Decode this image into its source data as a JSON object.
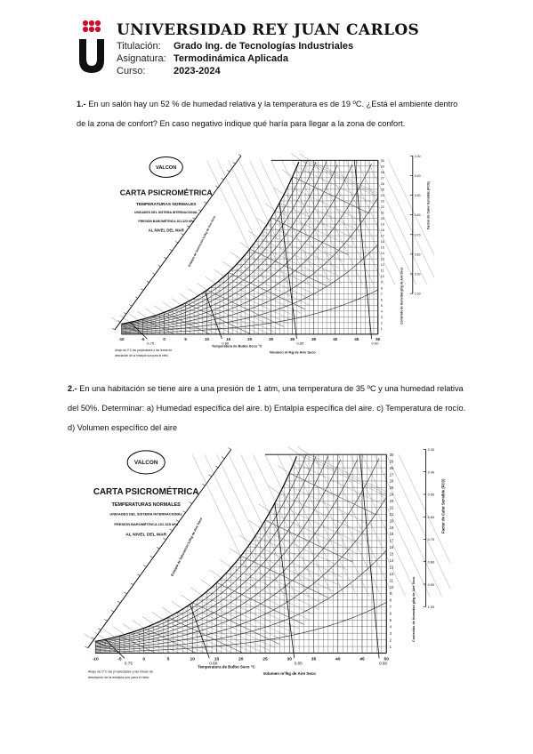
{
  "header": {
    "university": "UNIVERSIDAD REY JUAN CARLOS",
    "rows": [
      {
        "label": "Titulación:",
        "value": "Grado Ing. de Tecnologías Industriales"
      },
      {
        "label": "Asignatura:",
        "value": "Termodinámica Aplicada"
      },
      {
        "label": "Curso:",
        "value": "2023-2024"
      }
    ],
    "logo_color": "#c8102e"
  },
  "questions": [
    {
      "number": "1.-",
      "text": " En un salón hay un 52 % de humedad relativa y la temperatura es de 19 ºC. ¿Está el ambiente dentro de la zona de confort? En caso negativo indique qué haría para llegar a la zona de confort."
    },
    {
      "number": "2.-",
      "text": " En una habitación se tiene aire a una presión de 1 atm, una temperatura de 35 ºC y una humedad relativa del 50%. Determinar: a) Humedad específica del aire. b) Entalpía específica del aire. c) Temperatura de rocío. d) Volumen específico del aire"
    }
  ],
  "psychrometric_chart": {
    "brand": "VALCON",
    "title": "CARTA PSICROMÉTRICA",
    "subtitle": "TEMPERATURAS NORMALES",
    "line2": "UNIDADES DEL SISTEMA INTERNACIONAL",
    "pressure": "PRESIÓN BAROMÉTRICA   101.325 kPa",
    "sea_level": "AL NIVEL DEL MAR",
    "x_axis": "Temperatura de Bulbo Seco   °C",
    "volume_axis": "Volumen     m³/kg de Aire Seco",
    "enthalpy_axis": "Entalpía de Saturación   kJ/kg de Aire Seco",
    "humidity_axis": "Contenido de Humedad  g/kg de Aire Seco",
    "shf_axis": "Factor de Calor Sensible  (FCS)",
    "footnote_1": "Abajo de 0°C las propiedades y las líneas de",
    "footnote_2": "desviación de la entalpía son para el hielo",
    "x_ticks": [
      "-10",
      "-5",
      "0",
      "5",
      "10",
      "15",
      "20",
      "25",
      "30",
      "35",
      "40",
      "45",
      "50"
    ],
    "vol_ticks": [
      "0.75",
      "0.80",
      "0.85",
      "0.90"
    ],
    "right_ticks": [
      "30",
      "29",
      "28",
      "27",
      "26",
      "25",
      "24",
      "23",
      "22",
      "21",
      "20",
      "19",
      "18",
      "17",
      "16",
      "15",
      "14",
      "13",
      "12",
      "11",
      "10",
      "9",
      "8",
      "7",
      "6",
      "5",
      "4",
      "3",
      "2",
      "1"
    ],
    "shf_ticks": [
      "0.30",
      "0.40",
      "0.50",
      "0.60",
      "0.70",
      "0.80",
      "0.90",
      "1.00"
    ]
  }
}
